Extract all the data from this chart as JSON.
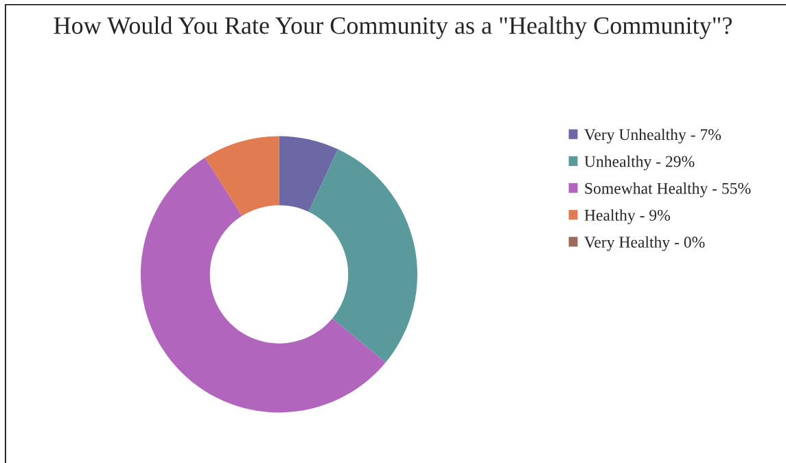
{
  "chart_data": {
    "type": "donut",
    "title": "How Would You Rate Your Community as a \"Healthy Community\"?",
    "categories": [
      "Very Unhealthy - 7%",
      "Unhealthy - 29%",
      "Somewhat Healthy - 55%",
      "Healthy - 9%",
      "Very Healthy - 0%"
    ],
    "values": [
      7,
      29,
      55,
      9,
      0
    ],
    "colors": [
      "#6c68a6",
      "#5a9a9c",
      "#b265bd",
      "#e07b52",
      "#9b6a5a"
    ],
    "legend": "right"
  }
}
